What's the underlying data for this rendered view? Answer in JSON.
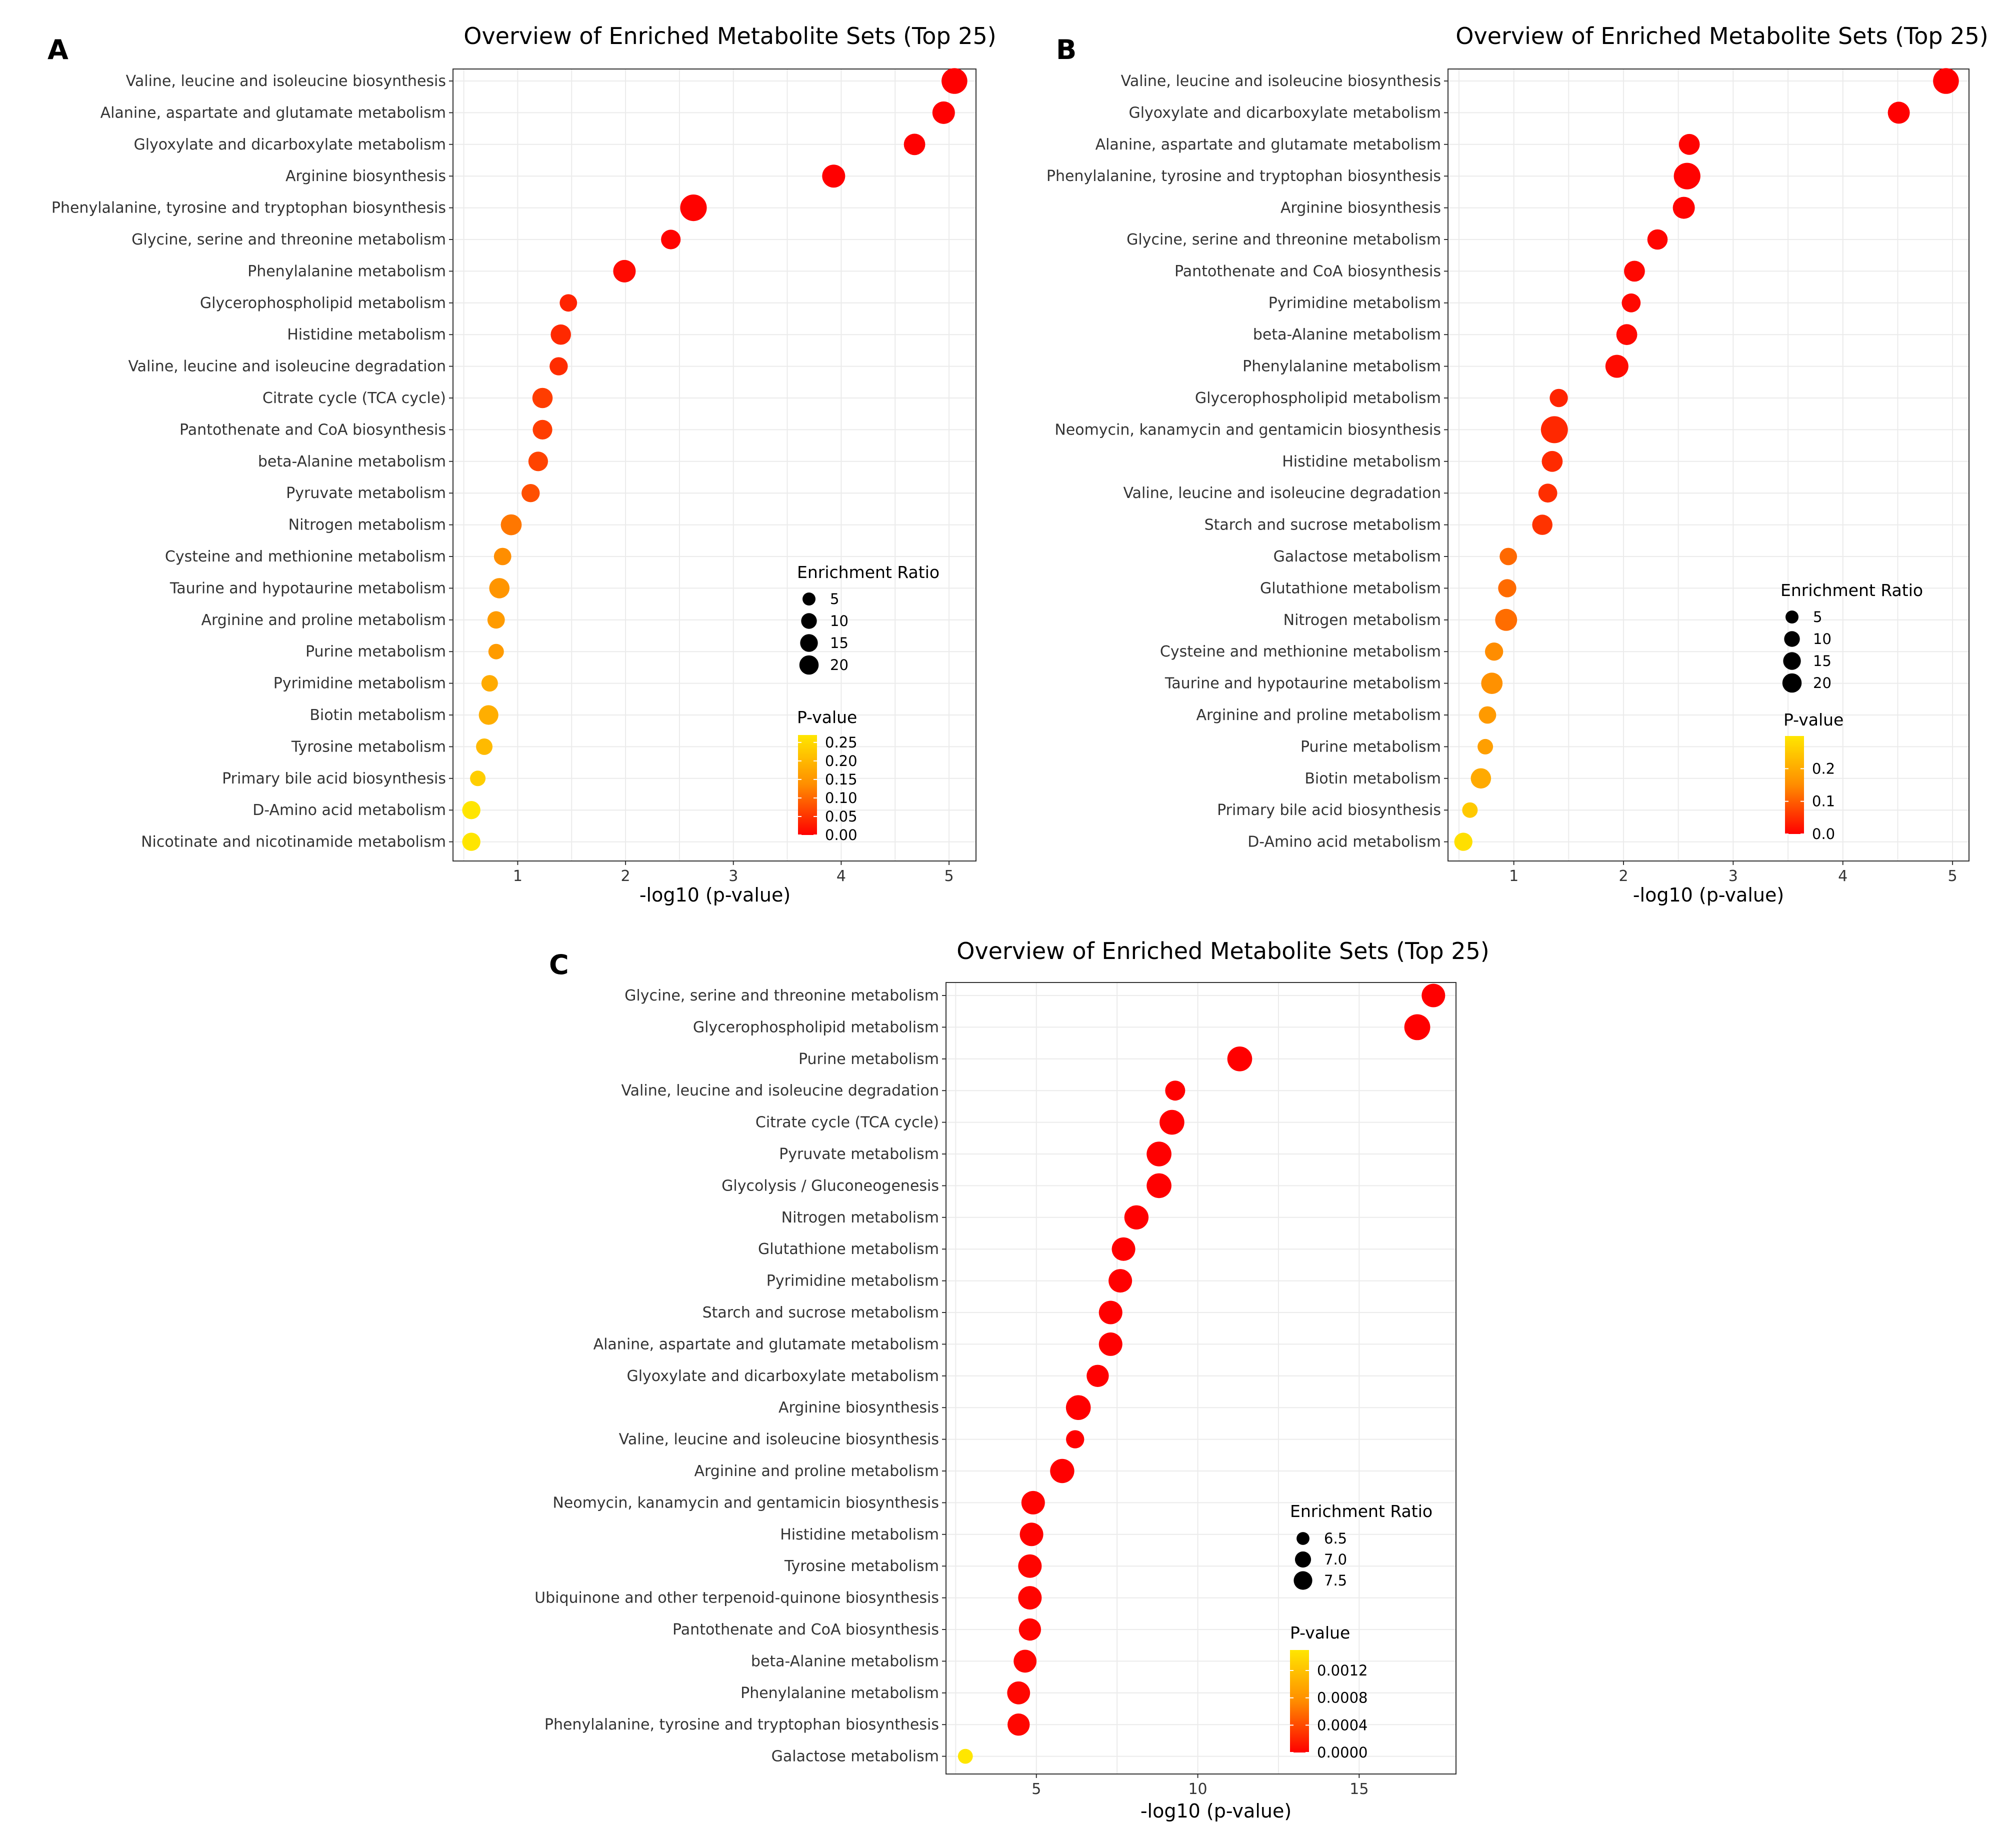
{
  "panel_letters": [
    "A",
    "B",
    "C"
  ],
  "chart_data": [
    {
      "type": "scatter",
      "panel": "A",
      "title": "Overview of Enriched Metabolite Sets (Top 25)",
      "xlabel": "-log10 (p-value)",
      "ylabel": "",
      "xlim": [
        0.4,
        5.25
      ],
      "xticks": [
        1,
        2,
        3,
        4,
        5
      ],
      "legend_size_title": "Enrichment Ratio",
      "legend_size_values": [
        5,
        10,
        15,
        20
      ],
      "legend_color_title": "P-value",
      "legend_color_ticks": [
        "0.25",
        "0.20",
        "0.15",
        "0.10",
        "0.05",
        "0.00"
      ],
      "pmax": 0.27,
      "ratio_max": 23,
      "categories": [
        "Valine, leucine and isoleucine biosynthesis",
        "Alanine, aspartate and glutamate metabolism",
        "Glyoxylate and dicarboxylate metabolism",
        "Arginine biosynthesis",
        "Phenylalanine, tyrosine and tryptophan biosynthesis",
        "Glycine, serine and threonine metabolism",
        "Phenylalanine metabolism",
        "Glycerophospholipid metabolism",
        "Histidine metabolism",
        "Valine, leucine and isoleucine degradation",
        "Citrate cycle (TCA cycle)",
        "Pantothenate and CoA biosynthesis",
        "beta-Alanine metabolism",
        "Pyruvate metabolism",
        "Nitrogen metabolism",
        "Cysteine and methionine metabolism",
        "Taurine and hypotaurine metabolism",
        "Arginine and proline metabolism",
        "Purine metabolism",
        "Pyrimidine metabolism",
        "Biotin metabolism",
        "Tyrosine metabolism",
        "Primary bile acid biosynthesis",
        "D-Amino acid metabolism",
        "Nicotinate and nicotinamide metabolism"
      ],
      "x": [
        5.05,
        4.95,
        4.68,
        3.93,
        2.63,
        2.42,
        1.99,
        1.47,
        1.4,
        1.38,
        1.23,
        1.23,
        1.19,
        1.12,
        0.94,
        0.86,
        0.83,
        0.8,
        0.8,
        0.74,
        0.73,
        0.69,
        0.63,
        0.57,
        0.57
      ],
      "ratio": [
        20,
        13,
        11,
        14,
        22,
        8,
        13,
        5,
        9,
        6,
        9,
        8,
        8,
        6,
        10,
        5,
        9,
        5,
        3,
        4,
        8,
        4,
        3,
        6,
        6
      ],
      "pvalue": [
        1e-05,
        1e-05,
        2e-05,
        0.0001,
        0.002,
        0.004,
        0.01,
        0.034,
        0.04,
        0.042,
        0.059,
        0.059,
        0.065,
        0.076,
        0.115,
        0.138,
        0.148,
        0.158,
        0.158,
        0.182,
        0.186,
        0.204,
        0.234,
        0.269,
        0.269
      ]
    },
    {
      "type": "scatter",
      "panel": "B",
      "title": "Overview of Enriched Metabolite Sets (Top 25)",
      "xlabel": "-log10 (p-value)",
      "ylabel": "",
      "xlim": [
        0.4,
        5.15
      ],
      "xticks": [
        1,
        2,
        3,
        4,
        5
      ],
      "legend_size_title": "Enrichment Ratio",
      "legend_size_values": [
        5,
        10,
        15,
        20
      ],
      "legend_color_title": "P-value",
      "legend_color_ticks": [
        "0.2",
        "0.1",
        "0.0"
      ],
      "pmax": 0.3,
      "ratio_max": 23,
      "categories": [
        "Valine, leucine and isoleucine biosynthesis",
        "Glyoxylate and dicarboxylate metabolism",
        "Alanine, aspartate and glutamate metabolism",
        "Phenylalanine, tyrosine and tryptophan biosynthesis",
        "Arginine biosynthesis",
        "Glycine, serine and threonine metabolism",
        "Pantothenate and CoA biosynthesis",
        "Pyrimidine metabolism",
        "beta-Alanine metabolism",
        "Phenylalanine metabolism",
        "Glycerophospholipid metabolism",
        "Neomycin, kanamycin and gentamicin biosynthesis",
        "Histidine metabolism",
        "Valine, leucine and isoleucine degradation",
        "Starch and sucrose metabolism",
        "Galactose metabolism",
        "Glutathione metabolism",
        "Nitrogen metabolism",
        "Cysteine and methionine metabolism",
        "Taurine and hypotaurine metabolism",
        "Arginine and proline metabolism",
        "Purine metabolism",
        "Biotin metabolism",
        "Primary bile acid biosynthesis",
        "D-Amino acid metabolism"
      ],
      "x": [
        4.94,
        4.51,
        2.6,
        2.58,
        2.55,
        2.31,
        2.1,
        2.07,
        2.03,
        1.94,
        1.41,
        1.37,
        1.35,
        1.31,
        1.26,
        0.95,
        0.94,
        0.93,
        0.82,
        0.8,
        0.76,
        0.74,
        0.7,
        0.6,
        0.54
      ],
      "ratio": [
        20,
        12,
        10,
        22,
        12,
        9,
        10,
        7,
        10,
        14,
        6,
        25,
        10,
        7,
        9,
        5,
        6,
        12,
        6,
        11,
        5,
        3,
        9,
        3,
        6
      ],
      "pvalue": [
        1e-05,
        3e-05,
        0.0025,
        0.0026,
        0.0028,
        0.005,
        0.008,
        0.0085,
        0.0093,
        0.0115,
        0.039,
        0.043,
        0.045,
        0.049,
        0.055,
        0.112,
        0.115,
        0.117,
        0.151,
        0.158,
        0.174,
        0.182,
        0.2,
        0.251,
        0.288
      ]
    },
    {
      "type": "scatter",
      "panel": "C",
      "title": "Overview of Enriched Metabolite Sets (Top 25)",
      "xlabel": "-log10 (p-value)",
      "ylabel": "",
      "xlim": [
        2.2,
        18.0
      ],
      "xticks": [
        5,
        10,
        15
      ],
      "legend_size_title": "Enrichment Ratio",
      "legend_size_values": [
        6.5,
        7.0,
        7.5
      ],
      "legend_color_title": "P-value",
      "legend_color_ticks": [
        "0.0012",
        "0.0008",
        "0.0004",
        "0.0000"
      ],
      "pmax": 0.0015,
      "ratio_max": 7.9,
      "categories": [
        "Glycine, serine and threonine metabolism",
        "Glycerophospholipid metabolism",
        "Purine metabolism",
        "Valine, leucine and isoleucine degradation",
        "Citrate cycle (TCA cycle)",
        "Pyruvate metabolism",
        "Glycolysis / Gluconeogenesis",
        "Nitrogen metabolism",
        "Glutathione metabolism",
        "Pyrimidine metabolism",
        "Starch and sucrose metabolism",
        "Alanine, aspartate and glutamate metabolism",
        "Glyoxylate and dicarboxylate metabolism",
        "Arginine biosynthesis",
        "Valine, leucine and isoleucine biosynthesis",
        "Arginine and proline metabolism",
        "Neomycin, kanamycin and gentamicin biosynthesis",
        "Histidine metabolism",
        "Tyrosine metabolism",
        "Ubiquinone and other terpenoid-quinone biosynthesis",
        "Pantothenate and CoA biosynthesis",
        "beta-Alanine metabolism",
        "Phenylalanine metabolism",
        "Phenylalanine, tyrosine and tryptophan biosynthesis",
        "Galactose metabolism"
      ],
      "x": [
        17.3,
        16.8,
        11.3,
        9.3,
        9.2,
        8.8,
        8.8,
        8.1,
        7.7,
        7.6,
        7.3,
        7.3,
        6.9,
        6.3,
        6.2,
        5.8,
        4.9,
        4.85,
        4.8,
        4.8,
        4.8,
        4.65,
        4.45,
        4.45,
        2.8
      ],
      "ratio": [
        7.3,
        7.7,
        7.5,
        6.8,
        7.5,
        7.5,
        7.5,
        7.4,
        7.3,
        7.3,
        7.3,
        7.3,
        7.1,
        7.5,
        6.6,
        7.4,
        7.3,
        7.3,
        7.3,
        7.3,
        7.1,
        7.2,
        7.2,
        7.1,
        6.3
      ],
      "pvalue": [
        0.0,
        0.0,
        0.0,
        0.0,
        0.0,
        0.0,
        0.0,
        0.0,
        0.0,
        0.0,
        0.0,
        0.0,
        0.0,
        0.0,
        0.0,
        0.0,
        1e-05,
        1e-05,
        2e-05,
        2e-05,
        2e-05,
        2e-05,
        3e-05,
        3e-05,
        0.0016
      ]
    }
  ]
}
